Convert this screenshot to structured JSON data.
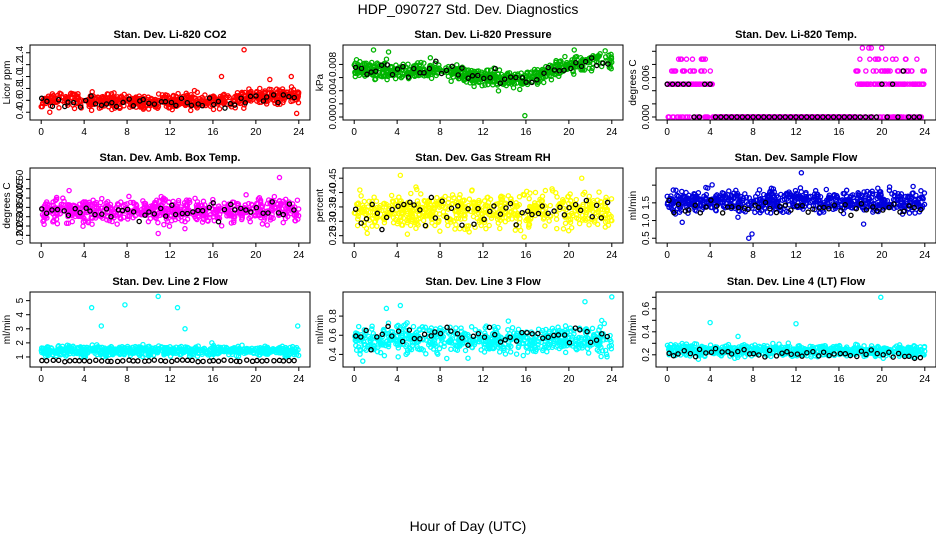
{
  "page": {
    "title": "HDP_090727  Std. Dev. Diagnostics",
    "xlabel": "Hour of Day (UTC)"
  },
  "chart_data": [
    {
      "type": "scatter",
      "title": "Stan. Dev. Li-820 CO2",
      "ylabel": "Licor ppm",
      "color": "#ff0000",
      "xlim": [
        0,
        24
      ],
      "ylim": [
        0.32,
        1.48
      ],
      "xticks": [
        0,
        4,
        8,
        12,
        16,
        20,
        24
      ],
      "xtick_labels": [
        "0",
        "4",
        "8",
        "12",
        "16",
        "20",
        "24"
      ],
      "yticks": [
        0.4,
        0.6,
        0.8,
        1.0,
        1.2,
        1.4
      ],
      "ytick_labels": [
        "0.4",
        "0.6",
        "0.8",
        "1.0",
        "1.2",
        "1.4"
      ],
      "profile": [
        [
          0,
          0.62
        ],
        [
          4,
          0.6
        ],
        [
          8,
          0.58
        ],
        [
          12,
          0.57
        ],
        [
          16,
          0.58
        ],
        [
          20,
          0.66
        ],
        [
          24,
          0.68
        ]
      ],
      "spread": 0.09,
      "black_offset": -0.03,
      "seed": 11,
      "outliers": [
        {
          "x": 16.8,
          "y": 1.0
        },
        {
          "x": 18.9,
          "y": 1.45
        },
        {
          "x": 21.3,
          "y": 0.95
        },
        {
          "x": 23.3,
          "y": 1.0
        },
        {
          "x": 0.8,
          "y": 0.4
        },
        {
          "x": 23.8,
          "y": 0.38
        }
      ]
    },
    {
      "type": "scatter",
      "title": "Stan. Dev. Li-820 Pressure",
      "ylabel": "kPa",
      "color": "#00b400",
      "xlim": [
        0,
        24
      ],
      "ylim": [
        0,
        0.0105
      ],
      "xticks": [
        0,
        4,
        8,
        12,
        16,
        20,
        24
      ],
      "xtick_labels": [
        "0",
        "4",
        "8",
        "12",
        "16",
        "20",
        "24"
      ],
      "yticks": [
        0,
        0.002,
        0.004,
        0.006,
        0.008
      ],
      "ytick_labels": [
        "0.000",
        "",
        "0.004",
        "",
        "0.008"
      ],
      "profile": [
        [
          0,
          0.0072
        ],
        [
          4,
          0.007
        ],
        [
          8,
          0.0072
        ],
        [
          12,
          0.006
        ],
        [
          16,
          0.0056
        ],
        [
          20,
          0.008
        ],
        [
          24,
          0.0086
        ]
      ],
      "spread": 0.0009,
      "black_offset": 0.0,
      "seed": 23,
      "outliers": [
        {
          "x": 1.8,
          "y": 0.0102
        },
        {
          "x": 3.2,
          "y": 0.0099
        },
        {
          "x": 15.9,
          "y": 0.0002
        },
        {
          "x": 20.5,
          "y": 0.0102
        }
      ]
    },
    {
      "type": "scatter",
      "title": "Stan. Dev. Li-820 Temp.",
      "ylabel": "degrees C",
      "color": "#ff00ff",
      "xlim": [
        0,
        24
      ],
      "ylim": [
        0,
        0.0105
      ],
      "xticks": [
        0,
        4,
        8,
        12,
        16,
        20,
        24
      ],
      "xtick_labels": [
        "0",
        "4",
        "8",
        "12",
        "16",
        "20",
        "24"
      ],
      "yticks": [
        0,
        0.002,
        0.004,
        0.006,
        0.008,
        0.01
      ],
      "ytick_labels": [
        "0.000",
        "",
        "",
        "0.006",
        "",
        ""
      ],
      "steps": [
        0,
        0.005,
        0.007,
        0.0088,
        0.0105
      ],
      "seed": 37
    },
    {
      "type": "scatter",
      "title": "Stan. Dev. Amb. Box Temp.",
      "ylabel": "degrees C",
      "color": "#ff00ff",
      "xlim": [
        0,
        24
      ],
      "ylim": [
        0.175,
        0.545
      ],
      "xticks": [
        0,
        4,
        8,
        12,
        16,
        20,
        24
      ],
      "xtick_labels": [
        "0",
        "4",
        "8",
        "12",
        "16",
        "20",
        "24"
      ],
      "yticks": [
        0.2,
        0.25,
        0.3,
        0.35,
        0.4,
        0.45,
        0.5
      ],
      "ytick_labels": [
        "0.20",
        "0.25",
        "0.30",
        "0.35",
        "0.40",
        "0.45",
        "0.50"
      ],
      "profile": [
        [
          0,
          0.33
        ],
        [
          12,
          0.33
        ],
        [
          24,
          0.33
        ]
      ],
      "spread": 0.045,
      "black_offset": 0.0,
      "seed": 41,
      "outliers": [
        {
          "x": 2.6,
          "y": 0.44
        },
        {
          "x": 22.2,
          "y": 0.51
        },
        {
          "x": 10.9,
          "y": 0.21
        }
      ]
    },
    {
      "type": "scatter",
      "title": "Stan. Dev. Gas Stream RH",
      "ylabel": "percent",
      "color": "#ffff00",
      "xlim": [
        0,
        24
      ],
      "ylim": [
        0.235,
        0.475
      ],
      "xticks": [
        0,
        4,
        8,
        12,
        16,
        20,
        24
      ],
      "xtick_labels": [
        "0",
        "4",
        "8",
        "12",
        "16",
        "20",
        "24"
      ],
      "yticks": [
        0.25,
        0.3,
        0.35,
        0.4,
        0.45
      ],
      "ytick_labels": [
        "0.25",
        "0.30",
        "0.35",
        "0.40",
        "0.45"
      ],
      "profile": [
        [
          0,
          0.335
        ],
        [
          24,
          0.34
        ]
      ],
      "spread": 0.045,
      "black_offset": 0.0,
      "seed": 53,
      "outliers": [
        {
          "x": 4.3,
          "y": 0.46
        },
        {
          "x": 21.2,
          "y": 0.45
        }
      ]
    },
    {
      "type": "scatter",
      "title": "Stan. Dev. Sample Flow",
      "ylabel": "ml/min",
      "color": "#0000dd",
      "xlim": [
        0,
        24
      ],
      "ylim": [
        0.45,
        2.4
      ],
      "xticks": [
        0,
        4,
        8,
        12,
        16,
        20,
        24
      ],
      "xtick_labels": [
        "0",
        "4",
        "8",
        "12",
        "16",
        "20",
        "24"
      ],
      "yticks": [
        0.5,
        1.0,
        1.5,
        2.0
      ],
      "ytick_labels": [
        "0.5",
        "1.0",
        "1.5",
        ""
      ],
      "profile": [
        [
          0,
          1.55
        ],
        [
          24,
          1.55
        ]
      ],
      "spread": 0.22,
      "black_offset": -0.2,
      "seed": 67,
      "outliers": [
        {
          "x": 7.6,
          "y": 0.5
        },
        {
          "x": 7.9,
          "y": 0.62
        },
        {
          "x": 12.5,
          "y": 2.35
        },
        {
          "x": 1.4,
          "y": 0.95
        },
        {
          "x": 18.3,
          "y": 0.9
        }
      ]
    },
    {
      "type": "scatter",
      "title": "Stan. Dev. Line 2 Flow",
      "ylabel": "ml/min",
      "color": "#00ffff",
      "xlim": [
        0,
        24
      ],
      "ylim": [
        0.5,
        5.4
      ],
      "xticks": [
        0,
        4,
        8,
        12,
        16,
        20,
        24
      ],
      "xtick_labels": [
        "0",
        "4",
        "8",
        "12",
        "16",
        "20",
        "24"
      ],
      "yticks": [
        1,
        2,
        3,
        4,
        5
      ],
      "ytick_labels": [
        "1",
        "2",
        "3",
        "4",
        "5"
      ],
      "profile": [
        [
          0,
          1.45
        ],
        [
          24,
          1.4
        ]
      ],
      "spread": 0.25,
      "black_values": 0.72,
      "seed": 71,
      "outliers": [
        {
          "x": 4.7,
          "y": 4.5
        },
        {
          "x": 5.6,
          "y": 3.2
        },
        {
          "x": 7.8,
          "y": 4.7
        },
        {
          "x": 10.9,
          "y": 5.3
        },
        {
          "x": 12.7,
          "y": 4.5
        },
        {
          "x": 13.4,
          "y": 3.0
        },
        {
          "x": 15.9,
          "y": 2.0
        },
        {
          "x": 23.9,
          "y": 3.2
        }
      ]
    },
    {
      "type": "scatter",
      "title": "Stan. Dev. Line 3 Flow",
      "ylabel": "ml/min",
      "color": "#00ffff",
      "xlim": [
        0,
        24
      ],
      "ylim": [
        0.3,
        1.02
      ],
      "xticks": [
        0,
        4,
        8,
        12,
        16,
        20,
        24
      ],
      "xtick_labels": [
        "0",
        "4",
        "8",
        "12",
        "16",
        "20",
        "24"
      ],
      "yticks": [
        0.4,
        0.6,
        0.8
      ],
      "ytick_labels": [
        "0.4",
        "0.6",
        "0.8"
      ],
      "profile": [
        [
          0,
          0.55
        ],
        [
          24,
          0.56
        ]
      ],
      "spread": 0.1,
      "black_offset": 0.05,
      "seed": 83,
      "outliers": [
        {
          "x": 3.0,
          "y": 0.88
        },
        {
          "x": 4.3,
          "y": 0.91
        },
        {
          "x": 21.5,
          "y": 0.95
        },
        {
          "x": 24.0,
          "y": 1.0
        },
        {
          "x": 0.8,
          "y": 0.33
        }
      ]
    },
    {
      "type": "scatter",
      "title": "Stan. Dev. Line 4 (LT) Flow",
      "ylabel": "ml/min",
      "color": "#00ffff",
      "xlim": [
        0,
        24
      ],
      "ylim": [
        0.12,
        0.72
      ],
      "xticks": [
        0,
        4,
        8,
        12,
        16,
        20,
        24
      ],
      "xtick_labels": [
        "0",
        "4",
        "8",
        "12",
        "16",
        "20",
        "24"
      ],
      "yticks": [
        0.2,
        0.3,
        0.4,
        0.5,
        0.6,
        0.7
      ],
      "ytick_labels": [
        "0.2",
        "",
        "0.4",
        "",
        "0.6",
        ""
      ],
      "profile": [
        [
          0,
          0.24
        ],
        [
          24,
          0.23
        ]
      ],
      "spread": 0.035,
      "black_offset": -0.02,
      "seed": 97,
      "outliers": [
        {
          "x": 4.0,
          "y": 0.48
        },
        {
          "x": 12.0,
          "y": 0.47
        },
        {
          "x": 19.9,
          "y": 0.7
        },
        {
          "x": 6.6,
          "y": 0.36
        }
      ]
    }
  ]
}
